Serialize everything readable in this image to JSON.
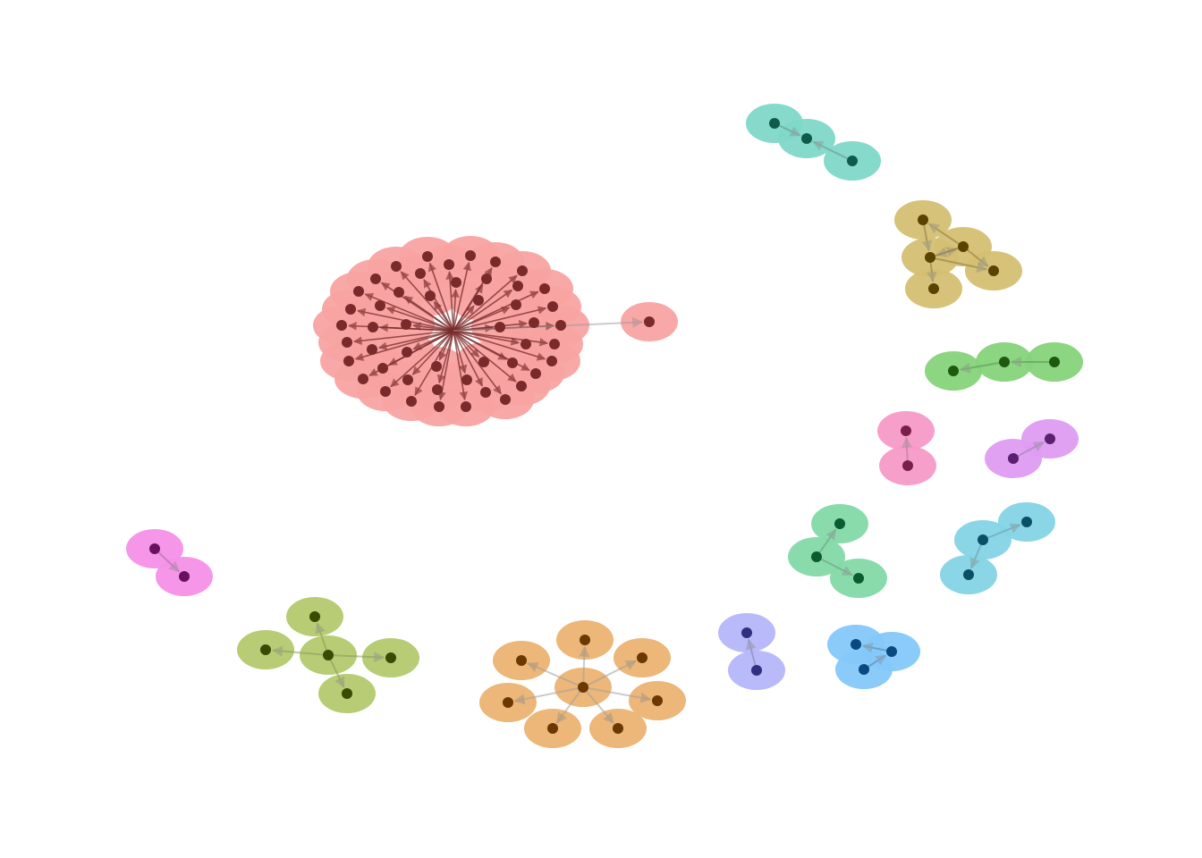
{
  "graph": {
    "type": "network",
    "directed": true,
    "clusters": [
      {
        "id": "red-hub",
        "color": "#f8a3a1",
        "dot": "#7a2a2a",
        "edge": "#7a2a2a"
      },
      {
        "id": "teal",
        "color": "#7fd8c8",
        "dot": "#0e5b4c",
        "edge": "#6b8f88"
      },
      {
        "id": "gold",
        "color": "#d4bf72",
        "dot": "#5a4300",
        "edge": "#8c7a40"
      },
      {
        "id": "green",
        "color": "#86d37a",
        "dot": "#1d5a10",
        "edge": "#5f8f58"
      },
      {
        "id": "pink",
        "color": "#f79ac8",
        "dot": "#7a1f4a",
        "edge": "#b07a90"
      },
      {
        "id": "violet",
        "color": "#de9cf2",
        "dot": "#5a1f70",
        "edge": "#9a80a8"
      },
      {
        "id": "mint",
        "color": "#84d9a8",
        "dot": "#0c5a30",
        "edge": "#6a9a80"
      },
      {
        "id": "sky",
        "color": "#84d4e6",
        "dot": "#0a4f66",
        "edge": "#6a9aa8"
      },
      {
        "id": "magenta",
        "color": "#f590e8",
        "dot": "#6a1060",
        "edge": "#a07098"
      },
      {
        "id": "olive",
        "color": "#b3c96e",
        "dot": "#3a4a00",
        "edge": "#8a9a60"
      },
      {
        "id": "orange",
        "color": "#ebb372",
        "dot": "#6a3800",
        "edge": "#a0a0a0"
      },
      {
        "id": "lavender",
        "color": "#b5b6fa",
        "dot": "#303080",
        "edge": "#8080b0"
      },
      {
        "id": "blue",
        "color": "#84c8fa",
        "dot": "#0a4880",
        "edge": "#5a80a0"
      }
    ]
  }
}
